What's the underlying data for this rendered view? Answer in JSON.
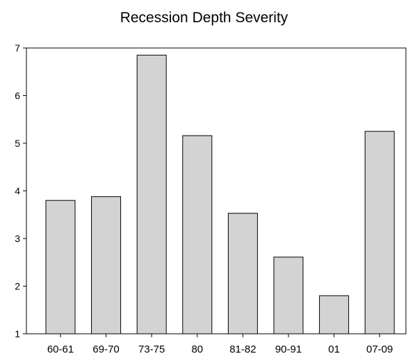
{
  "chart_data": {
    "type": "bar",
    "title": "Recession Depth Severity",
    "xlabel": "",
    "ylabel": "",
    "categories": [
      "60-61",
      "69-70",
      "73-75",
      "80",
      "81-82",
      "90-91",
      "01",
      "07-09"
    ],
    "values": [
      3.8,
      3.88,
      6.85,
      5.16,
      3.53,
      2.61,
      1.8,
      5.25
    ],
    "ylim": [
      1,
      7
    ],
    "yticks": [
      1,
      2,
      3,
      4,
      5,
      6,
      7
    ],
    "grid": false,
    "legend": "none",
    "bar_color": "#d3d3d3",
    "bar_edge_color": "#000000"
  }
}
